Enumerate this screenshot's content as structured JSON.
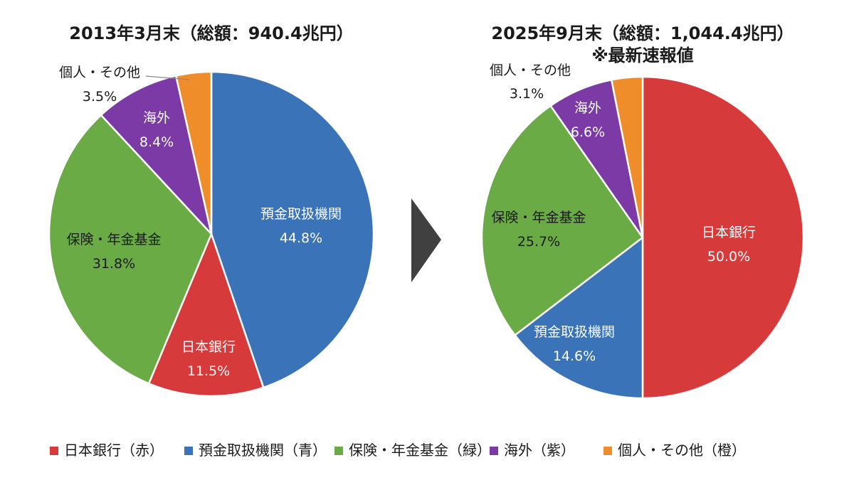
{
  "chart_data": [
    {
      "type": "pie",
      "title": "2013年3月末（総額：940.4兆円）",
      "subtitle": "",
      "slices": [
        {
          "name": "預金取扱機関",
          "pct_label": "44.8%",
          "value": 44.8,
          "color": "#3a73b8"
        },
        {
          "name": "日本銀行",
          "pct_label": "11.5%",
          "value": 11.5,
          "color": "#d63a3a"
        },
        {
          "name": "保険・年金基金",
          "pct_label": "31.8%",
          "value": 31.8,
          "color": "#6aab45"
        },
        {
          "name": "海外",
          "pct_label": "8.4%",
          "value": 8.4,
          "color": "#7b3aa6"
        },
        {
          "name": "個人・その他",
          "pct_label": "3.5%",
          "value": 3.5,
          "color": "#ee8d2a"
        }
      ]
    },
    {
      "type": "pie",
      "title": "2025年9月末（総額：1,044.4兆円）",
      "subtitle": "※最新速報値",
      "slices": [
        {
          "name": "日本銀行",
          "pct_label": "50.0%",
          "value": 50.0,
          "color": "#d63a3a"
        },
        {
          "name": "預金取扱機関",
          "pct_label": "14.6%",
          "value": 14.6,
          "color": "#3a73b8"
        },
        {
          "name": "保険・年金基金",
          "pct_label": "25.7%",
          "value": 25.7,
          "color": "#6aab45"
        },
        {
          "name": "海外",
          "pct_label": "6.6%",
          "value": 6.6,
          "color": "#7b3aa6"
        },
        {
          "name": "個人・その他",
          "pct_label": "3.1%",
          "value": 3.1,
          "color": "#ee8d2a"
        }
      ]
    }
  ],
  "legend": [
    {
      "label": "日本銀行（赤）",
      "color": "#d63a3a"
    },
    {
      "label": "預金取扱機関（青）",
      "color": "#3a73b8"
    },
    {
      "label": "保険・年金基金（緑）",
      "color": "#6aab45"
    },
    {
      "label": "海外（紫）",
      "color": "#7b3aa6"
    },
    {
      "label": "個人・その他（橙）",
      "color": "#ee8d2a"
    }
  ],
  "arrow_color": "#404040"
}
